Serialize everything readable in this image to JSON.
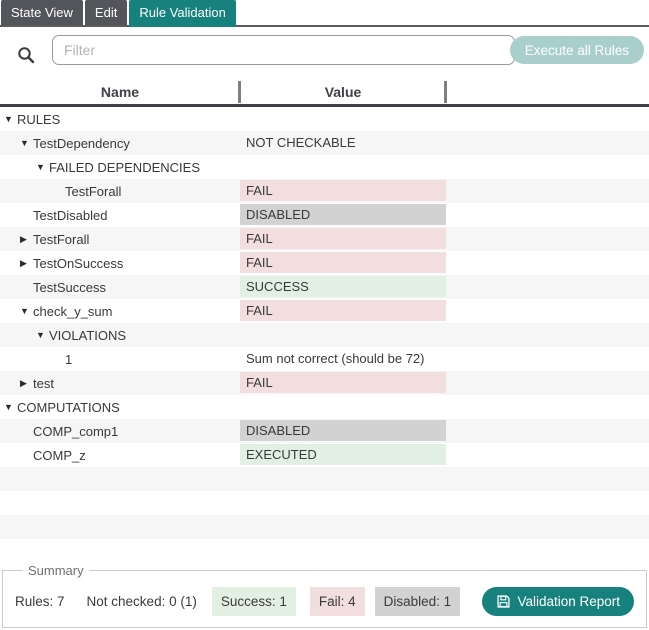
{
  "tabs": [
    {
      "label": "State View",
      "active": false
    },
    {
      "label": "Edit",
      "active": false
    },
    {
      "label": "Rule Validation",
      "active": true
    }
  ],
  "toolbar": {
    "search_icon": "magnifier",
    "filter_placeholder": "Filter",
    "filter_value": "",
    "execute_button": "Execute all Rules"
  },
  "table": {
    "columns": [
      "Name",
      "Value"
    ]
  },
  "tree": {
    "rows": [
      {
        "name": "RULES",
        "value": "",
        "level": 0,
        "arrow": "expanded",
        "status": "none"
      },
      {
        "name": "TestDependency",
        "value": "NOT CHECKABLE",
        "level": 1,
        "arrow": "expanded",
        "status": "plain"
      },
      {
        "name": "FAILED DEPENDENCIES",
        "value": "",
        "level": 2,
        "arrow": "expanded",
        "status": "none"
      },
      {
        "name": "TestForall",
        "value": "FAIL",
        "level": 3,
        "arrow": "none",
        "status": "fail"
      },
      {
        "name": "TestDisabled",
        "value": "DISABLED",
        "level": 1,
        "arrow": "none",
        "status": "disabled"
      },
      {
        "name": "TestForall",
        "value": "FAIL",
        "level": 1,
        "arrow": "collapsed",
        "status": "fail"
      },
      {
        "name": "TestOnSuccess",
        "value": "FAIL",
        "level": 1,
        "arrow": "collapsed",
        "status": "fail"
      },
      {
        "name": "TestSuccess",
        "value": "SUCCESS",
        "level": 1,
        "arrow": "none",
        "status": "success"
      },
      {
        "name": "check_y_sum",
        "value": "FAIL",
        "level": 1,
        "arrow": "expanded",
        "status": "fail"
      },
      {
        "name": "VIOLATIONS",
        "value": "",
        "level": 2,
        "arrow": "expanded",
        "status": "none"
      },
      {
        "name": "1",
        "value": "Sum not correct (should be 72)",
        "level": 3,
        "arrow": "none",
        "status": "plain"
      },
      {
        "name": "test",
        "value": "FAIL",
        "level": 1,
        "arrow": "collapsed",
        "status": "fail"
      },
      {
        "name": "COMPUTATIONS",
        "value": "",
        "level": 0,
        "arrow": "expanded",
        "status": "none"
      },
      {
        "name": "COMP_comp1",
        "value": "DISABLED",
        "level": 1,
        "arrow": "none",
        "status": "disabled"
      },
      {
        "name": "COMP_z",
        "value": "EXECUTED",
        "level": 1,
        "arrow": "none",
        "status": "success"
      }
    ]
  },
  "summary": {
    "legend": "Summary",
    "rules_label": "Rules: 7",
    "not_checked_label": "Not checked: 0 (1)",
    "badges": [
      {
        "label": "Success: 1"
      },
      {
        "label": "Fail: 4"
      },
      {
        "label": "Disabled: 1"
      }
    ],
    "report_button": "Validation Report",
    "report_icon": "save-icon"
  },
  "colors": {
    "teal": "#17817e",
    "tab_inactive": "#54555b",
    "fail_bg": "#f2dede",
    "success_bg": "#e2efe3",
    "disabled_bg": "#d2d2d2",
    "row_stripe": "#f6f6f6",
    "execute_button_bg": "#a9cfcd"
  }
}
